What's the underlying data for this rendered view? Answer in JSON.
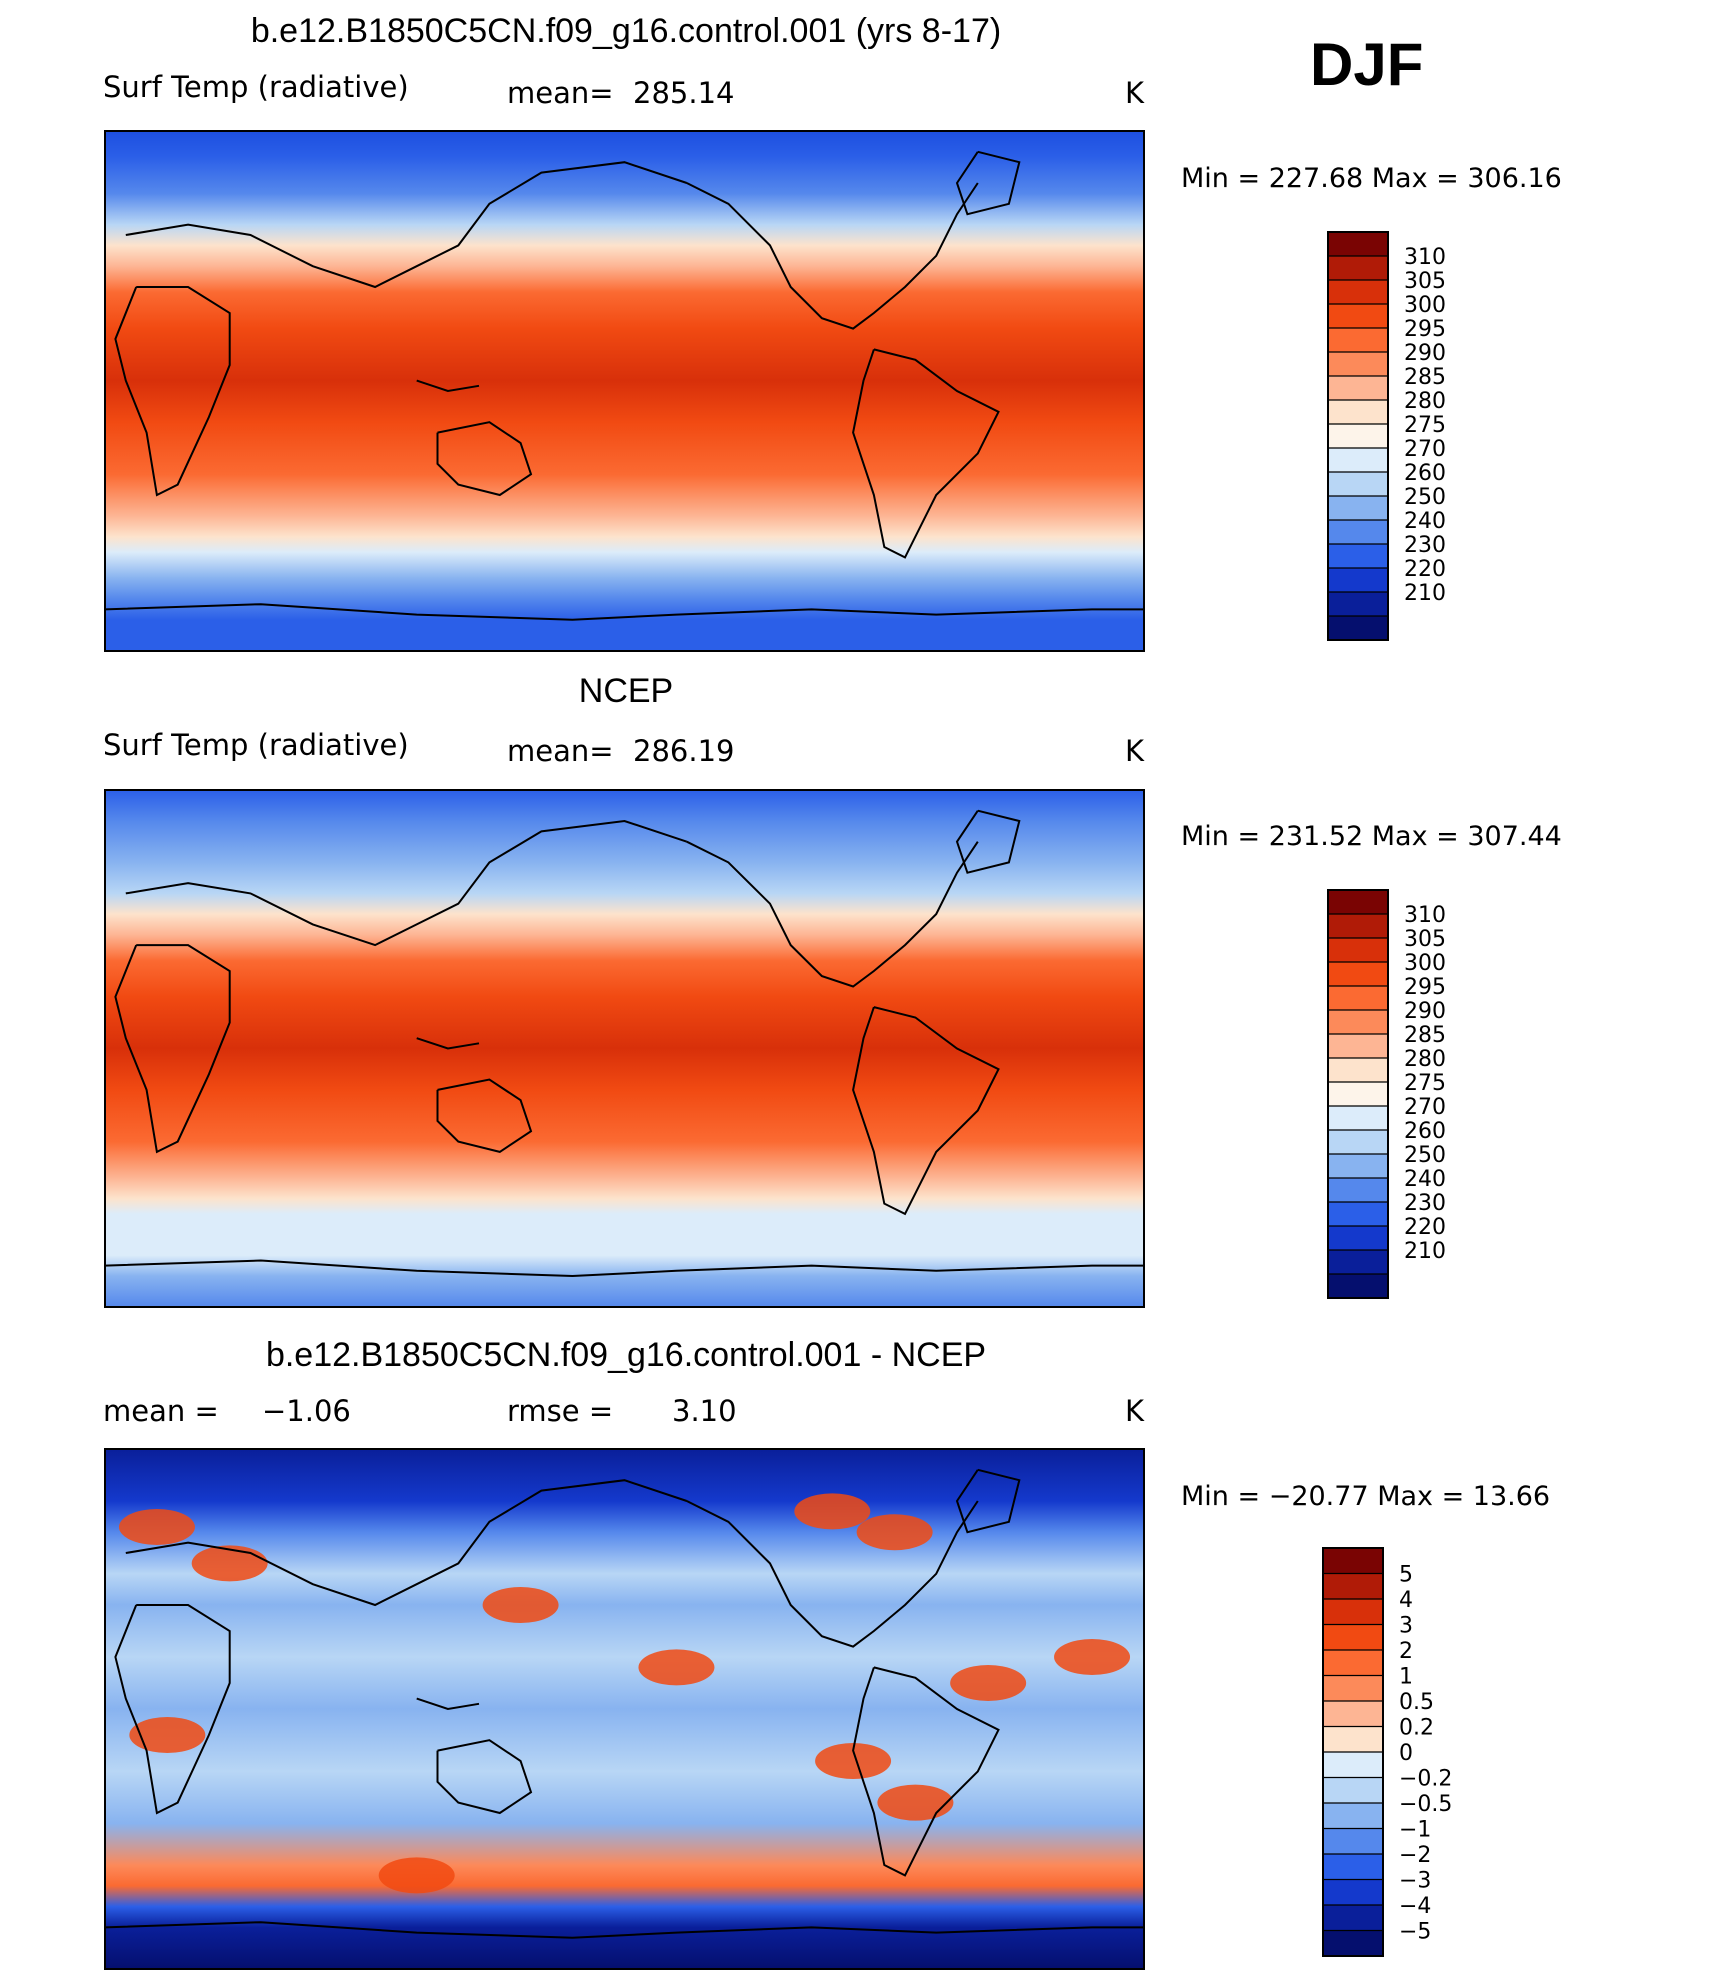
{
  "season": "DJF",
  "chart_data": [
    {
      "type": "heatmap",
      "title": "b.e12.B1850C5CN.f09_g16.control.001 (yrs 8-17)",
      "variable": "Surf Temp (radiative)",
      "stat_label": "mean=",
      "stat_value": "285.14",
      "units": "K",
      "min_max": "Min = 227.68 Max = 306.16",
      "min": 227.68,
      "max": 306.16,
      "colorbar_labels": [
        "310",
        "305",
        "300",
        "295",
        "290",
        "285",
        "280",
        "275",
        "270",
        "260",
        "250",
        "240",
        "230",
        "220",
        "210"
      ],
      "colorbar_colors": [
        "#7a0403",
        "#b01b07",
        "#d8300a",
        "#f14a12",
        "#fb6a32",
        "#fc8a5a",
        "#fdb594",
        "#fde3cc",
        "#fdf4ea",
        "#dcecfa",
        "#b8d6f5",
        "#88b3f0",
        "#5588ec",
        "#2b5fe8",
        "#1439cc",
        "#0a1f9a",
        "#050f6e"
      ],
      "colormap": "cool-to-warm",
      "map": "global lat-lon with coastlines"
    },
    {
      "type": "heatmap",
      "title": "NCEP",
      "variable": "Surf Temp (radiative)",
      "stat_label": "mean=",
      "stat_value": "286.19",
      "units": "K",
      "min_max": "Min = 231.52 Max = 307.44",
      "min": 231.52,
      "max": 307.44,
      "colorbar_labels": [
        "310",
        "305",
        "300",
        "295",
        "290",
        "285",
        "280",
        "275",
        "270",
        "260",
        "250",
        "240",
        "230",
        "220",
        "210"
      ],
      "colorbar_colors": [
        "#7a0403",
        "#b01b07",
        "#d8300a",
        "#f14a12",
        "#fb6a32",
        "#fc8a5a",
        "#fdb594",
        "#fde3cc",
        "#fdf4ea",
        "#dcecfa",
        "#b8d6f5",
        "#88b3f0",
        "#5588ec",
        "#2b5fe8",
        "#1439cc",
        "#0a1f9a",
        "#050f6e"
      ],
      "colormap": "cool-to-warm",
      "map": "global lat-lon with coastlines"
    },
    {
      "type": "heatmap",
      "title": "b.e12.B1850C5CN.f09_g16.control.001 - NCEP",
      "variable": "",
      "stat_label": "mean =",
      "stat_value": "−1.06",
      "stat2_label": "rmse =",
      "stat2_value": "3.10",
      "units": "K",
      "min_max": "Min = −20.77 Max =  13.66",
      "min": -20.77,
      "max": 13.66,
      "colorbar_labels": [
        "5",
        "4",
        "3",
        "2",
        "1",
        "0.5",
        "0.2",
        "0",
        "−0.2",
        "−0.5",
        "−1",
        "−2",
        "−3",
        "−4",
        "−5"
      ],
      "colorbar_colors": [
        "#7a0403",
        "#b01b07",
        "#d8300a",
        "#f14a12",
        "#fb6a32",
        "#fc8a5a",
        "#fdb594",
        "#fde3cc",
        "#dcecfa",
        "#b8d6f5",
        "#88b3f0",
        "#5588ec",
        "#2b5fe8",
        "#1439cc",
        "#0a1f9a",
        "#050f6e"
      ],
      "colormap": "diverging blue-red",
      "map": "global lat-lon with coastlines"
    }
  ]
}
